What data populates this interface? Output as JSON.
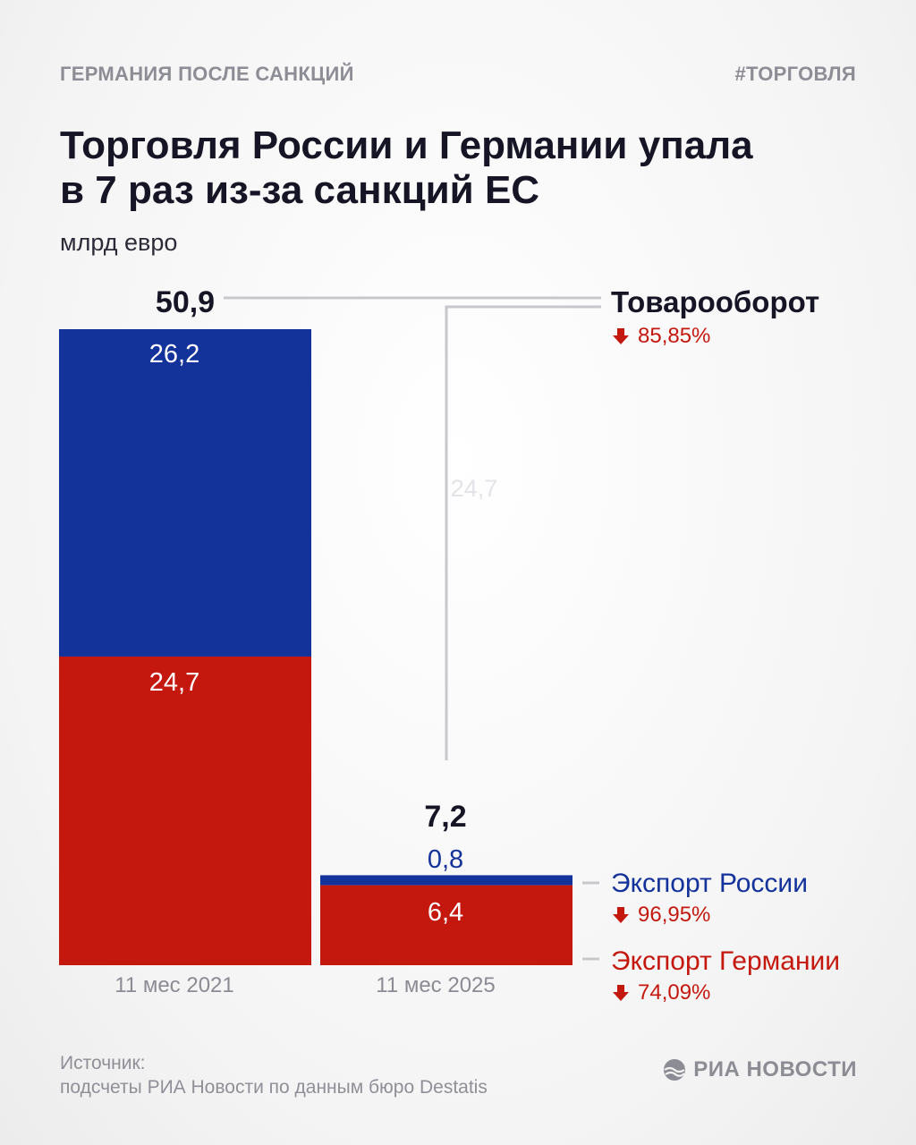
{
  "header": {
    "kicker_left": "ГЕРМАНИЯ ПОСЛЕ САНКЦИЙ",
    "kicker_right": "#ТОРГОВЛЯ",
    "title_line1": "Торговля России и Германии упала",
    "title_line2": "в 7 раз из-за санкций ЕС",
    "unit": "млрд евро"
  },
  "colors": {
    "russia": "#13329a",
    "germany": "#c4180f",
    "decline": "#c4180f",
    "leader": "#c8c8cc"
  },
  "chart_data": {
    "type": "bar",
    "stacked": true,
    "categories": [
      "11 мес 2021",
      "11 мес 2025"
    ],
    "series": [
      {
        "name": "Экспорт Германии",
        "values": [
          24.7,
          6.4
        ],
        "labels": [
          "24,7",
          "6,4"
        ],
        "color": "#c4180f"
      },
      {
        "name": "Экспорт России",
        "values": [
          26.2,
          0.8
        ],
        "labels": [
          "26,2",
          "0,8"
        ],
        "color": "#13329a"
      }
    ],
    "totals": [
      50.9,
      7.2
    ],
    "total_labels": [
      "50,9",
      "7,2"
    ],
    "ghost_label": "24,7",
    "unit": "млрд евро",
    "legend": [
      {
        "name": "Товарооборот",
        "change": "85,85%",
        "color": "#151526"
      },
      {
        "name": "Экспорт России",
        "change": "96,95%",
        "color": "#13329a"
      },
      {
        "name": "Экспорт Германии",
        "change": "74,09%",
        "color": "#c4180f"
      }
    ]
  },
  "footer": {
    "source_label": "Источник:",
    "source_text": "подсчеты РИА Новости по данным бюро Destatis",
    "logo_text": "РИА НОВОСТИ"
  }
}
